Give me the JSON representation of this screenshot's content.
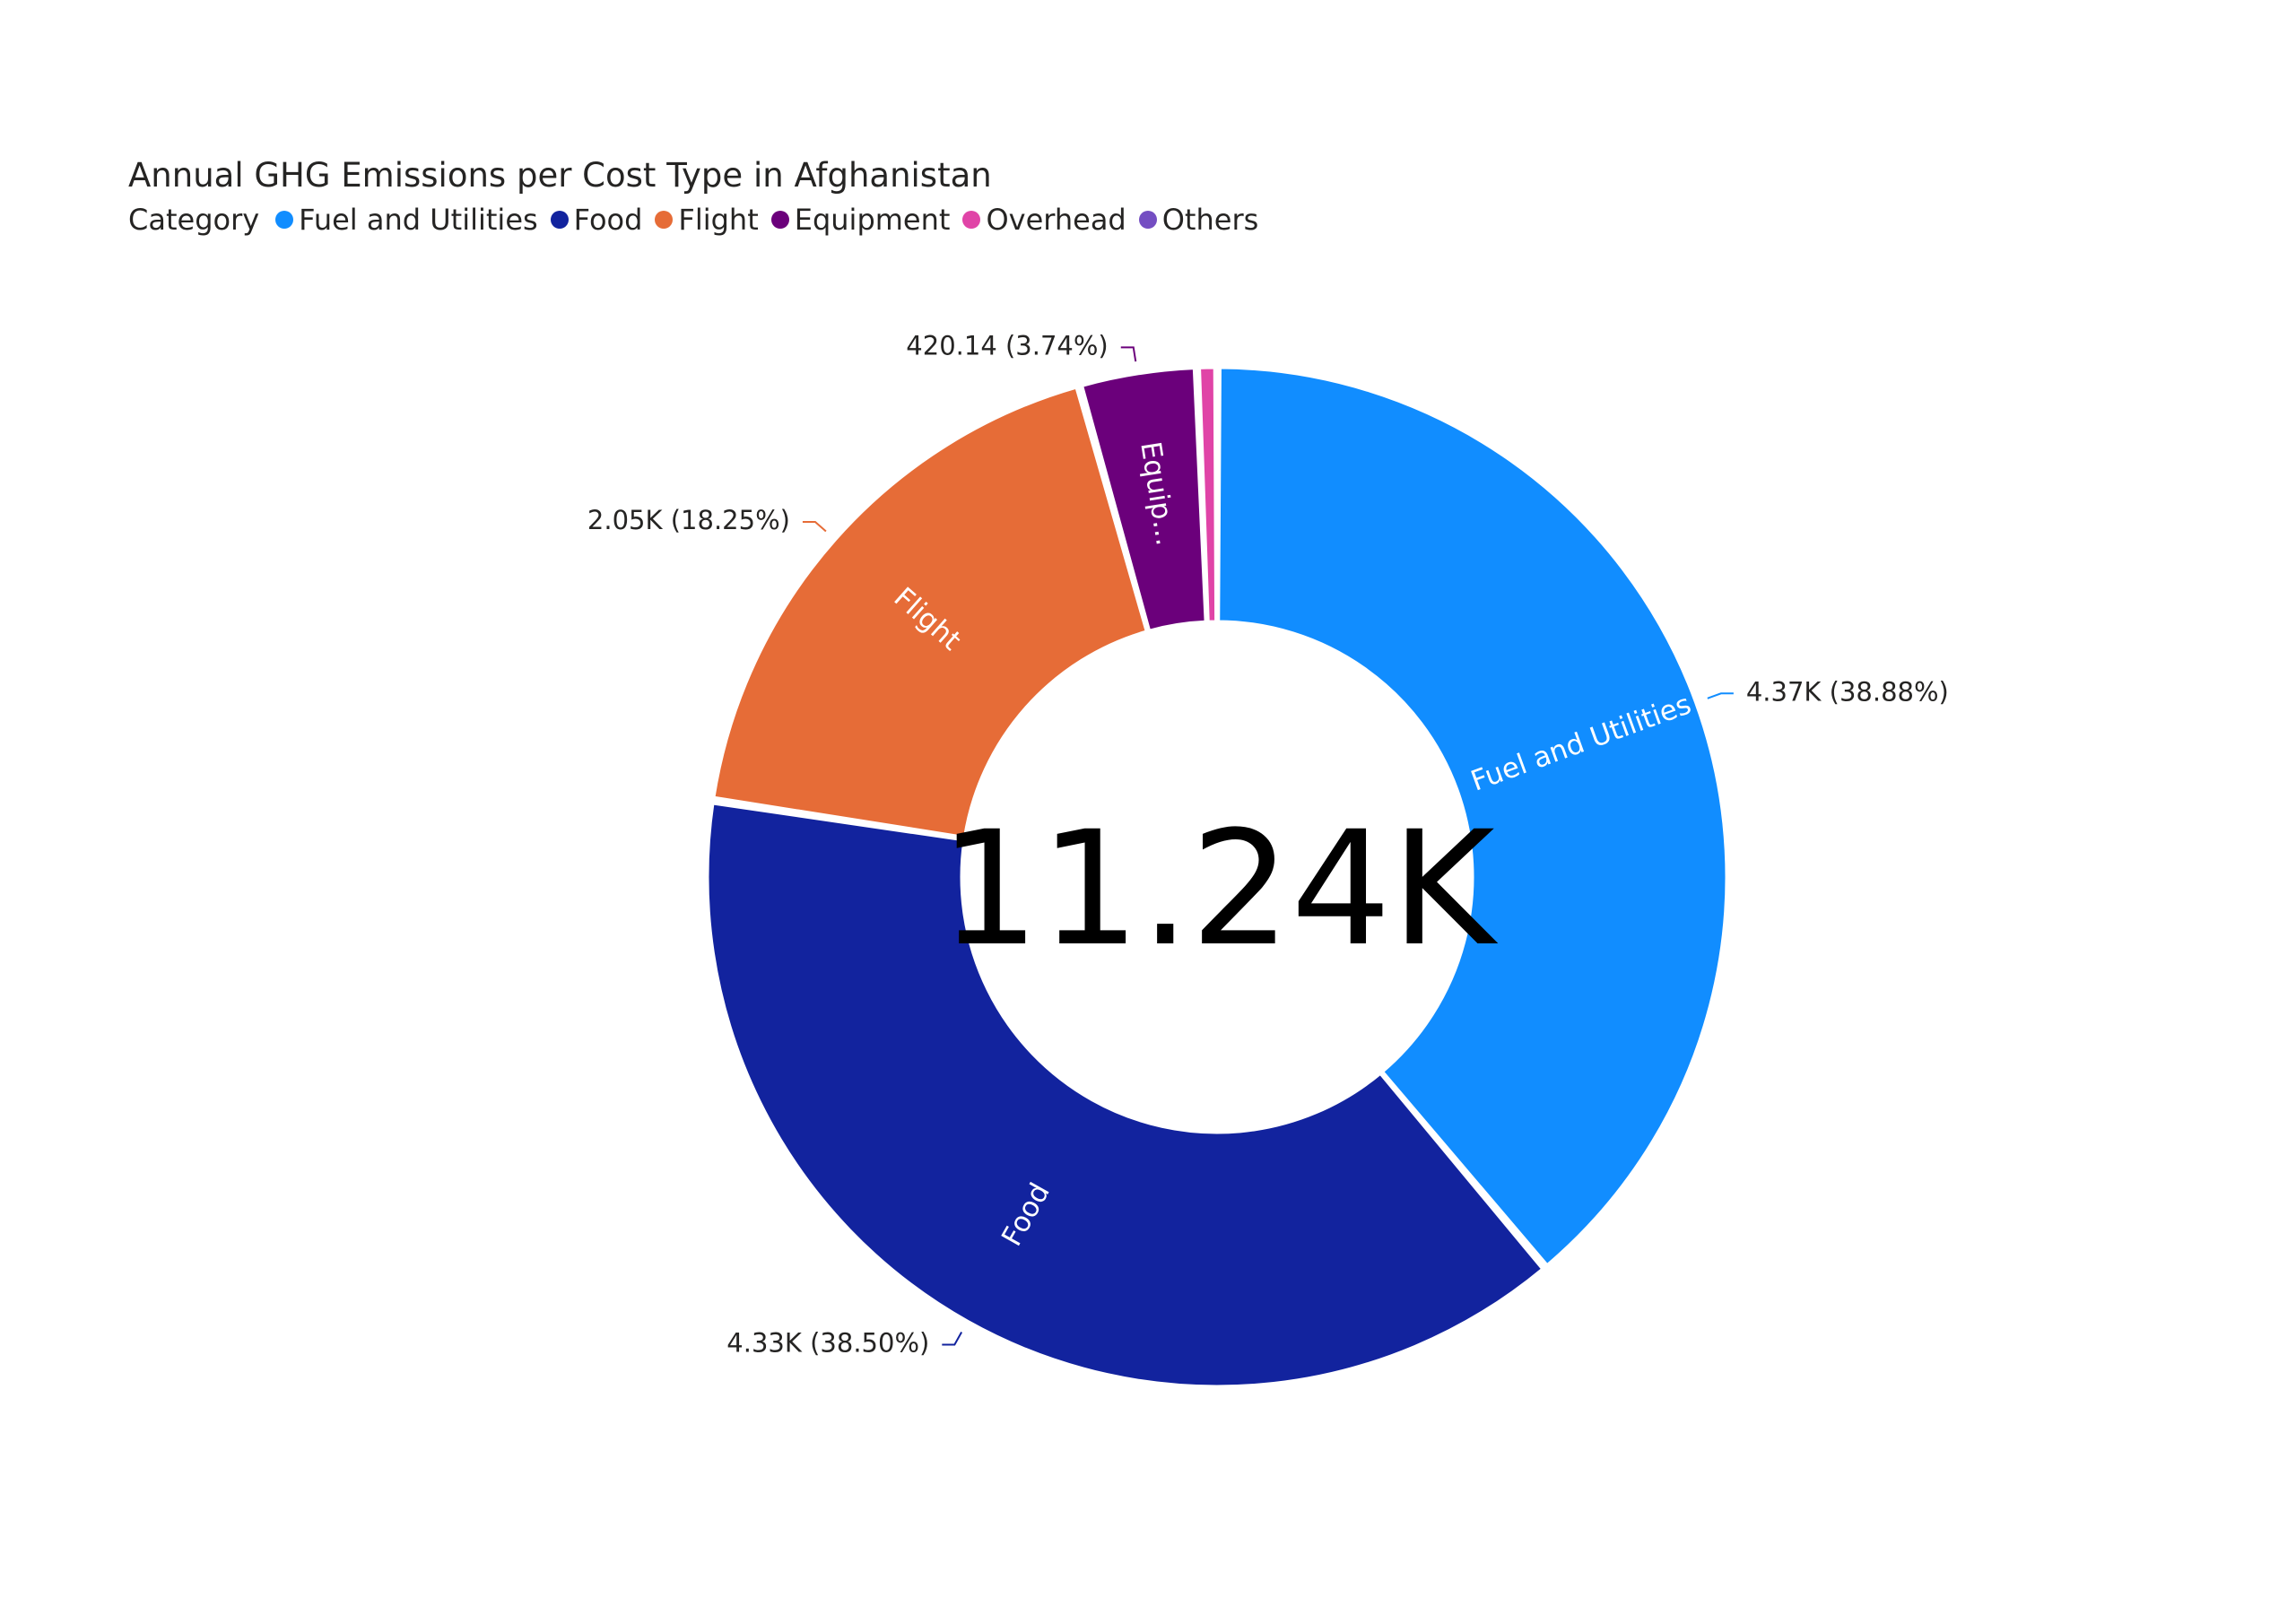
{
  "chart_data": {
    "type": "pie",
    "subtype": "donut",
    "title": "Annual GHG Emissions per Cost Type in Afghanistan",
    "legend": {
      "title": "Category",
      "placement": "top-left"
    },
    "center_label": "11.24K",
    "slices": [
      {
        "name": "Fuel and Utilities",
        "value": 4370,
        "percent": 38.88,
        "label": "4.37K (38.88%)",
        "inner_label": "Fuel and Utilities",
        "color": "#118DFF"
      },
      {
        "name": "Food",
        "value": 4330,
        "percent": 38.5,
        "label": "4.33K (38.50%)",
        "inner_label": "Food",
        "color": "#12239E"
      },
      {
        "name": "Flight",
        "value": 2050,
        "percent": 18.25,
        "label": "2.05K (18.25%)",
        "inner_label": "Flight",
        "color": "#E66C37"
      },
      {
        "name": "Equipment",
        "value": 420.14,
        "percent": 3.74,
        "label": "420.14 (3.74%)",
        "inner_label": "Equip...",
        "color": "#6B007B"
      },
      {
        "name": "Overhead",
        "value": 70,
        "percent": 0.63,
        "label": "",
        "inner_label": "",
        "color": "#E044A7"
      },
      {
        "name": "Others",
        "value": 0,
        "percent": 0.0,
        "label": "",
        "inner_label": "",
        "color": "#744EC2"
      }
    ]
  }
}
